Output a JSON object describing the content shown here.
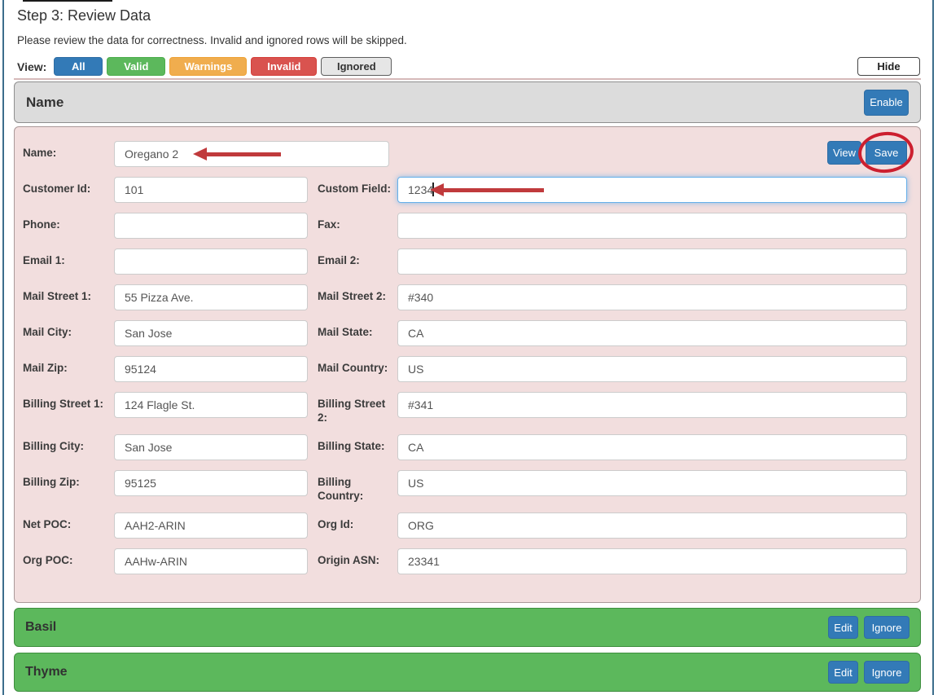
{
  "header": {
    "title": "Step 3: Review Data",
    "subtitle": "Please review the data for correctness. Invalid and ignored rows will be skipped.",
    "view_label": "View:",
    "hide_button": "Hide"
  },
  "view_filters": [
    {
      "label": "All",
      "bg": "#337ab7",
      "fg": "#ffffff"
    },
    {
      "label": "Valid",
      "bg": "#5cb85c",
      "fg": "#ffffff"
    },
    {
      "label": "Warnings",
      "bg": "#f0ad4e",
      "fg": "#ffffff"
    },
    {
      "label": "Invalid",
      "bg": "#d9534f",
      "fg": "#ffffff"
    },
    {
      "label": "Ignored",
      "bg": "#e6e6e6",
      "fg": "#333333"
    }
  ],
  "section": {
    "header_title": "Name",
    "enable_button": "Enable",
    "view_button": "View",
    "save_button": "Save"
  },
  "record": {
    "name_row": {
      "label": "Name:",
      "value": "Oregano 2"
    },
    "rows": [
      {
        "left": {
          "label": "Customer Id:",
          "value": "101"
        },
        "right": {
          "label": "Custom Field:",
          "value": "1234"
        }
      },
      {
        "left": {
          "label": "Phone:",
          "value": ""
        },
        "right": {
          "label": "Fax:",
          "value": ""
        }
      },
      {
        "left": {
          "label": "Email 1:",
          "value": ""
        },
        "right": {
          "label": "Email 2:",
          "value": ""
        }
      },
      {
        "left": {
          "label": "Mail Street 1:",
          "value": "55 Pizza Ave."
        },
        "right": {
          "label": "Mail Street 2:",
          "value": "#340"
        }
      },
      {
        "left": {
          "label": "Mail City:",
          "value": "San Jose"
        },
        "right": {
          "label": "Mail State:",
          "value": "CA"
        }
      },
      {
        "left": {
          "label": "Mail Zip:",
          "value": "95124"
        },
        "right": {
          "label": "Mail Country:",
          "value": "US"
        }
      },
      {
        "left": {
          "label": "Billing Street 1:",
          "value": "124 Flagle St."
        },
        "right": {
          "label": "Billing Street 2:",
          "value": "#341"
        }
      },
      {
        "left": {
          "label": "Billing City:",
          "value": "San Jose"
        },
        "right": {
          "label": "Billing State:",
          "value": "CA"
        }
      },
      {
        "left": {
          "label": "Billing Zip:",
          "value": "95125"
        },
        "right": {
          "label": "Billing Country:",
          "value": "US"
        }
      },
      {
        "left": {
          "label": "Net POC:",
          "value": "AAH2-ARIN"
        },
        "right": {
          "label": "Org Id:",
          "value": "ORG"
        }
      },
      {
        "left": {
          "label": "Org POC:",
          "value": "AAHw-ARIN"
        },
        "right": {
          "label": "Origin ASN:",
          "value": "23341"
        }
      }
    ]
  },
  "other_records": [
    {
      "title": "Basil",
      "edit_button": "Edit",
      "ignore_button": "Ignore"
    },
    {
      "title": "Thyme",
      "edit_button": "Edit",
      "ignore_button": "Ignore"
    }
  ],
  "colors": {
    "primary_blue": "#337ab7",
    "valid_green": "#5cb85c",
    "warning_orange": "#f0ad4e",
    "invalid_red": "#d9534f",
    "panel_pink": "#f2dede",
    "panel_gray": "#dcdcdc",
    "annotation_arrow_red": "#c03a3c",
    "annotation_circle_red": "#cc1f2f"
  }
}
